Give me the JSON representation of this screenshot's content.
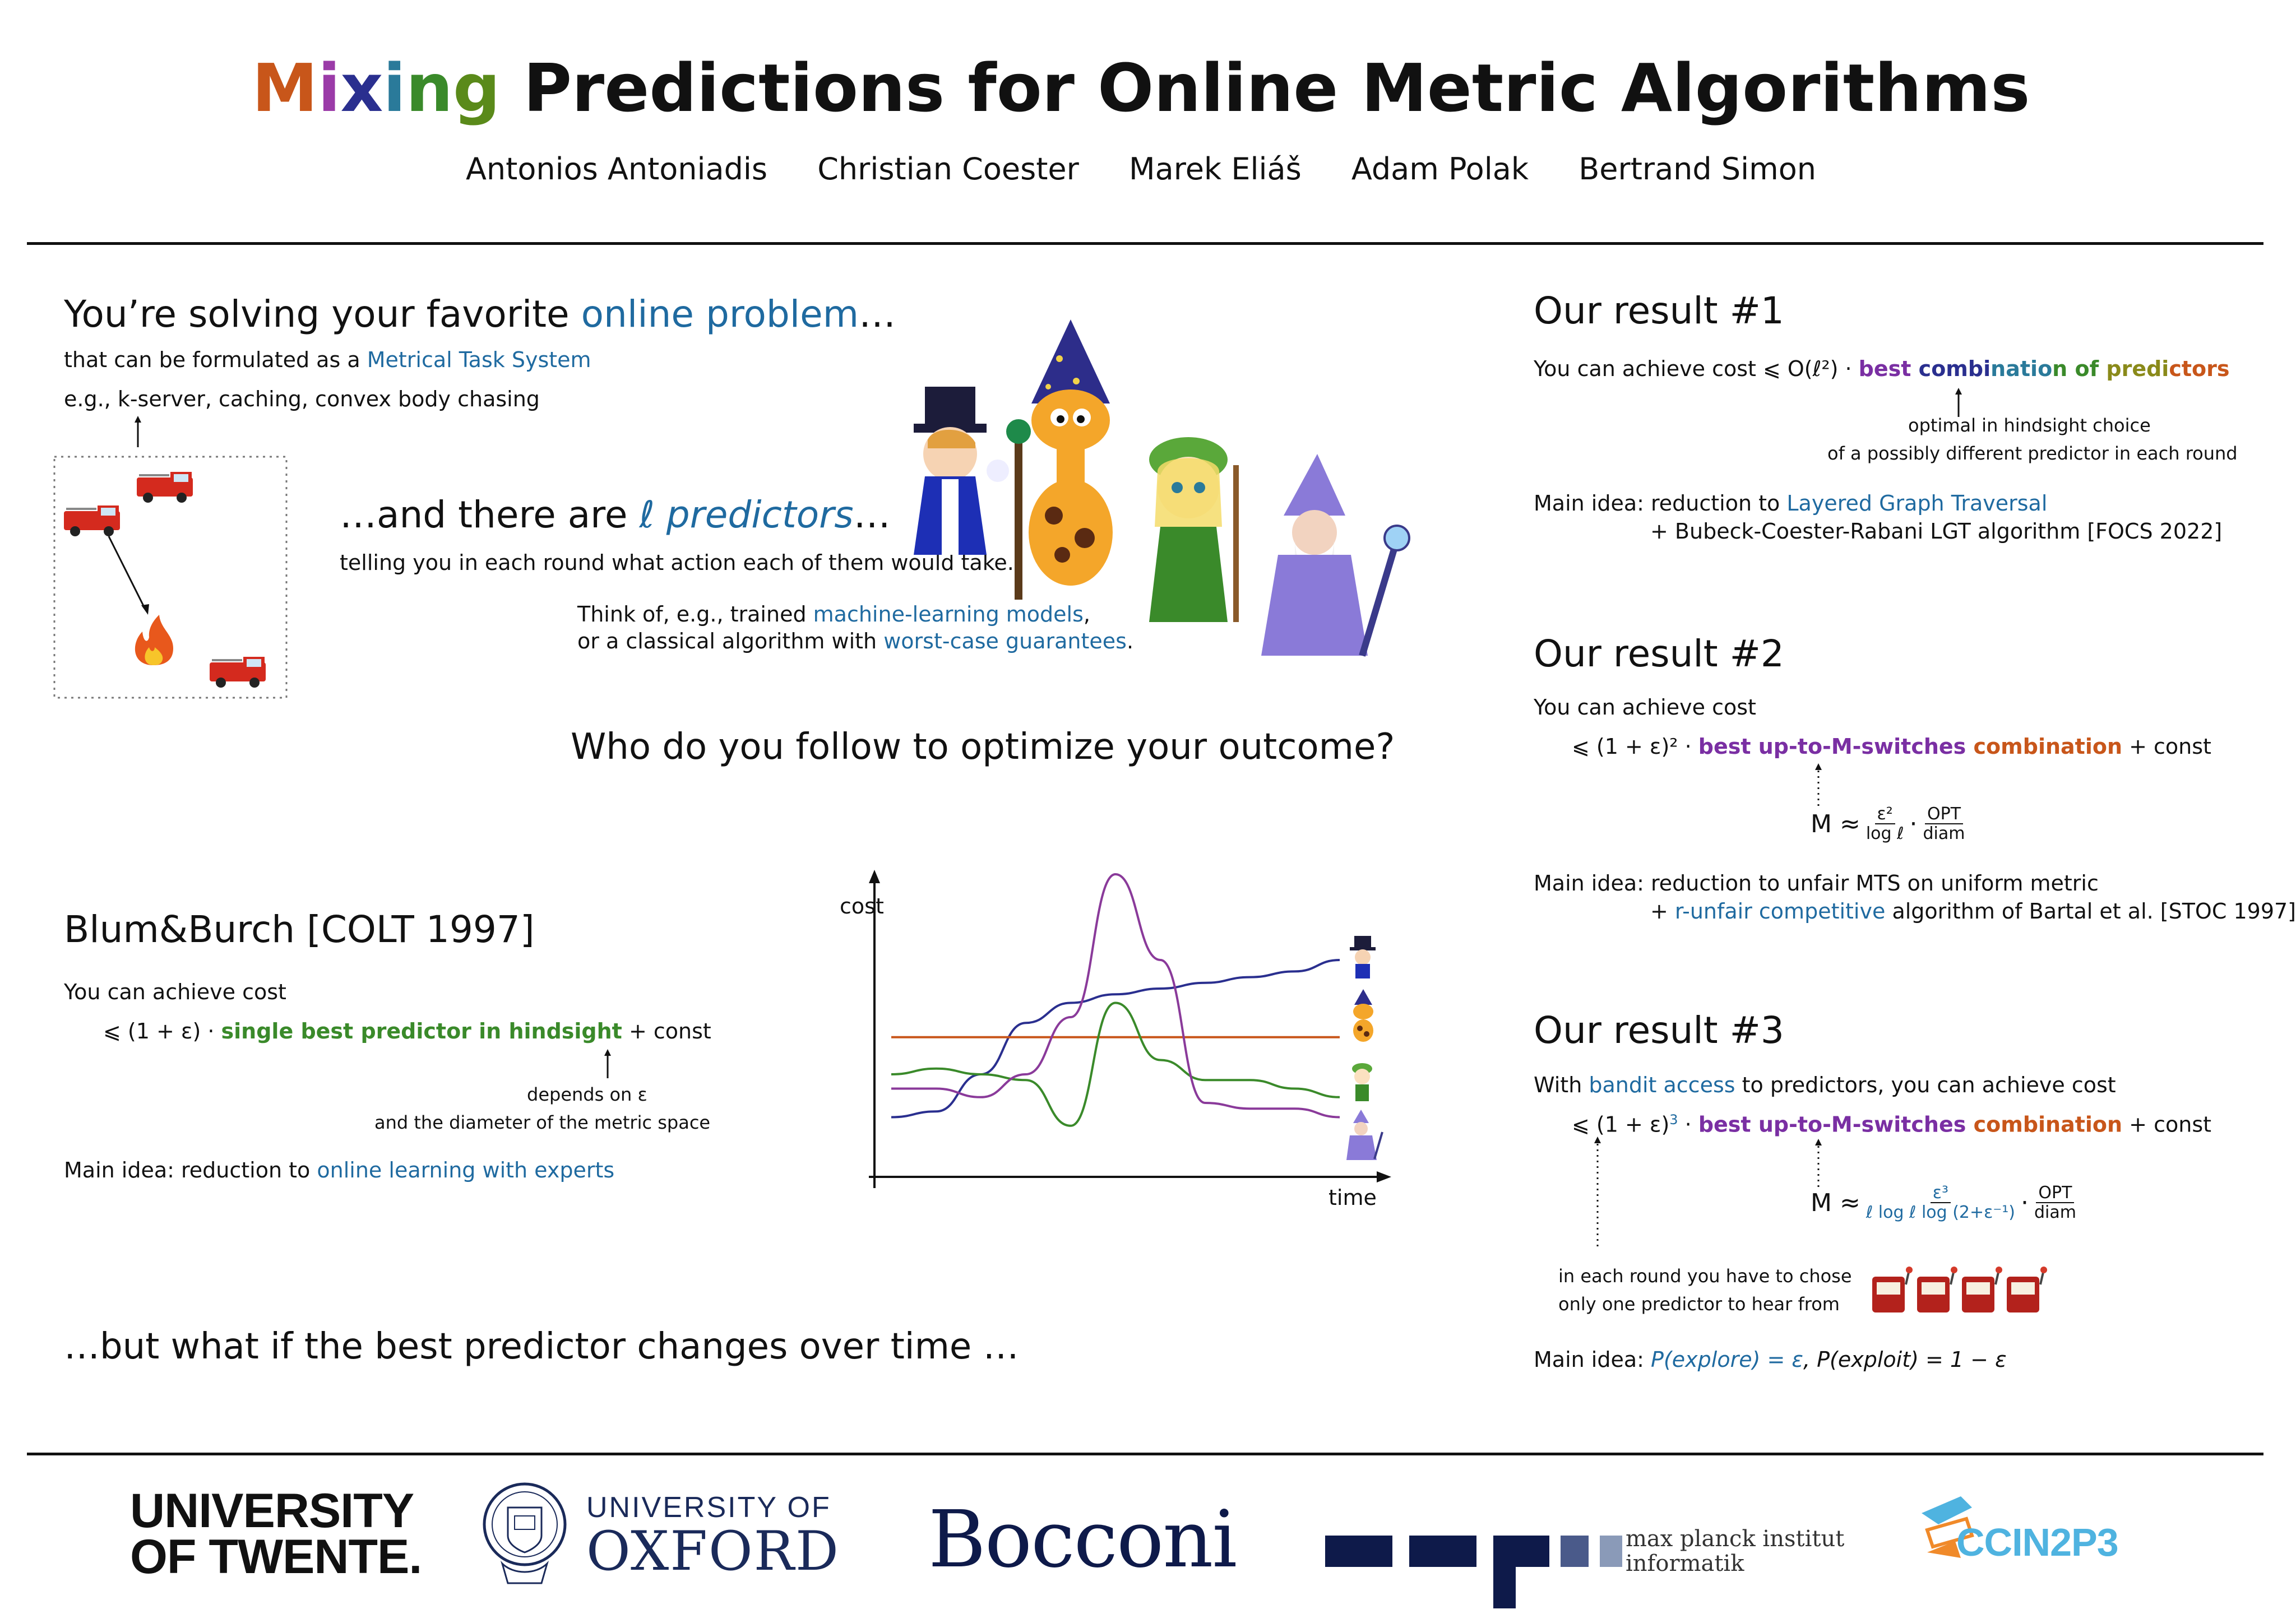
{
  "header": {
    "title_mixing": [
      "M",
      "i",
      "x",
      "i",
      "n",
      "g"
    ],
    "title_rest": "Predictions for Online Metric Algorithms",
    "authors": [
      "Antonios Antoniadis",
      "Christian Coester",
      "Marek Eliáš",
      "Adam Polak",
      "Bertrand Simon"
    ]
  },
  "left": {
    "intro_title_a": "You’re solving your favorite ",
    "intro_title_b": "online problem",
    "intro_title_c": "…",
    "intro_line1_a": "that can be formulated as a ",
    "intro_line1_b": "Metrical Task System",
    "intro_line2": "e.g., k-server, caching, convex body chasing",
    "predictors_a": "…and there are ",
    "predictors_b": "ℓ predictors",
    "predictors_c": "…",
    "predictors_sub": "telling you in each round what action each of them would take.",
    "think_a": "Think of, e.g., trained ",
    "think_b": "machine-learning models",
    "think_c": ",",
    "think2_a": "or a classical algorithm with ",
    "think2_b": "worst-case guarantees",
    "think2_c": ".",
    "question": "Who do you follow to optimize your outcome?",
    "blum_title": "Blum&Burch [COLT 1997]",
    "blum_line1": "You can achieve cost",
    "blum_formula_a": "⩽ (1 + ε) · ",
    "blum_formula_b": "single best predictor in hindsight",
    "blum_formula_c": " + const",
    "blum_note1": "depends on ε",
    "blum_note2": "and the diameter of the metric space",
    "blum_idea_a": "Main idea: reduction to ",
    "blum_idea_b": "online learning with experts",
    "but_what": "…but what if the best predictor changes over time …"
  },
  "chart_data": {
    "type": "line",
    "xlabel": "time",
    "ylabel": "cost",
    "x": [
      0,
      1,
      2,
      3,
      4,
      5,
      6,
      7,
      8,
      9,
      10
    ],
    "series": [
      {
        "color": "#2a2f8f",
        "values": [
          0.15,
          0.17,
          0.3,
          0.48,
          0.55,
          0.58,
          0.6,
          0.62,
          0.64,
          0.66,
          0.7
        ]
      },
      {
        "color": "#c8561a",
        "values": [
          0.43,
          0.43,
          0.43,
          0.43,
          0.43,
          0.43,
          0.43,
          0.43,
          0.43,
          0.43,
          0.43
        ]
      },
      {
        "color": "#3a8a2a",
        "values": [
          0.3,
          0.32,
          0.3,
          0.28,
          0.12,
          0.55,
          0.35,
          0.28,
          0.28,
          0.25,
          0.22
        ]
      },
      {
        "color": "#8a3a9a",
        "values": [
          0.25,
          0.25,
          0.22,
          0.3,
          0.5,
          1.0,
          0.7,
          0.2,
          0.18,
          0.18,
          0.15
        ]
      }
    ]
  },
  "right": {
    "r1_title": "Our result #1",
    "r1_line_a": "You can achieve cost ⩽ O(ℓ²) · ",
    "r1_best": [
      "b",
      "e",
      "s",
      "t",
      " ",
      "c",
      "o",
      "m",
      "b",
      "i",
      "n",
      "a",
      "t",
      "i",
      "o",
      "n",
      " ",
      "o",
      "f",
      " ",
      "p",
      "r",
      "e",
      "d",
      "i",
      "c",
      "t",
      "o",
      "r",
      "s"
    ],
    "r1_note1": "optimal in hindsight choice",
    "r1_note2": "of a possibly different predictor in each round",
    "r1_idea_a": "Main idea: reduction to ",
    "r1_idea_b": "Layered Graph Traversal",
    "r1_idea2": "+ Bubeck-Coester-Rabani LGT algorithm [FOCS 2022]",
    "r2_title": "Our result #2",
    "r2_line": "You can achieve cost",
    "r2_formula_a": "⩽ (1 + ε)² · ",
    "r2_formula_b": "best up-to-M-switches",
    "r2_formula_c": " combination",
    "r2_formula_d": "  + const",
    "r2_m": "M ≈",
    "r2_frac1_top": "ε²",
    "r2_frac1_bot": "log ℓ",
    "r2_frac2_top": "OPT",
    "r2_frac2_bot": "diam",
    "r2_idea_a": "Main idea: reduction to unfair MTS on uniform metric",
    "r2_idea2_a": "+ ",
    "r2_idea2_b": "r-unfair competitive",
    "r2_idea2_c": " algorithm of Bartal et al. [STOC 1997]",
    "r3_title": "Our result #3",
    "r3_line_a": "With ",
    "r3_line_b": "bandit access",
    "r3_line_c": " to predictors, you can achieve cost",
    "r3_formula_a": "⩽ (1 + ε)",
    "r3_formula_sup": "3",
    "r3_formula_dot": " · ",
    "r3_formula_b": "best up-to-M-switches",
    "r3_formula_c": " combination",
    "r3_formula_d": "  + const",
    "r3_m": "M ≈",
    "r3_frac1_top": "ε³",
    "r3_frac1_bot": "ℓ log ℓ log (2+ε⁻¹)",
    "r3_frac2_top": "OPT",
    "r3_frac2_bot": "diam",
    "r3_note1": "in each round you have to chose",
    "r3_note2": "only one predictor to hear from",
    "r3_idea_a": "Main idea: ",
    "r3_idea_b": "P(explore) = ε",
    "r3_idea_c": ",  P(exploit) = 1 − ε"
  },
  "footer": {
    "twente1": "UNIVERSITY",
    "twente2": "OF TWENTE.",
    "oxford1": "UNIVERSITY OF",
    "oxford2": "OXFORD",
    "bocconi": "Bocconi",
    "mpi1": "max planck institut",
    "mpi2": "informatik",
    "in2p3": "CCIN2P3"
  },
  "colors": {
    "blue": "#1f6aa0",
    "green": "#3a8a2a",
    "purple": "#7a2fa3",
    "orange": "#c8561a",
    "title_gradient": [
      "#c8561a",
      "#9b3ba8",
      "#2a2f8f",
      "#2a7a9a",
      "#3a8a2a",
      "#5a8a1a"
    ]
  }
}
